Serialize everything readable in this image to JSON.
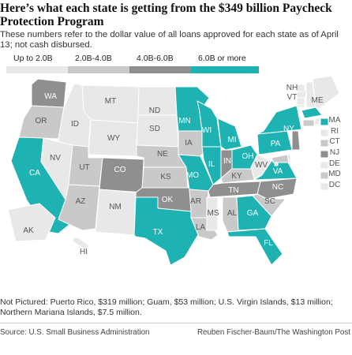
{
  "title": "Here’s what each state is getting from the $349 billion Paycheck Protection Program",
  "subtitle": "These numbers refer to the dollar value of all loans approved for each state as of April 13; not cash disbursed.",
  "legend": [
    {
      "label": "Up to 2.0B",
      "color": "#e8e8e8"
    },
    {
      "label": "2.0B-4.0B",
      "color": "#c9c9c9"
    },
    {
      "label": "4.0B-6.0B",
      "color": "#8f8f8f"
    },
    {
      "label": "6.0B or more",
      "color": "#1fb2b2"
    }
  ],
  "states": [
    {
      "abbr": "WA",
      "bin": 2
    },
    {
      "abbr": "OR",
      "bin": 1
    },
    {
      "abbr": "CA",
      "bin": 3
    },
    {
      "abbr": "ID",
      "bin": 0
    },
    {
      "abbr": "NV",
      "bin": 0
    },
    {
      "abbr": "AZ",
      "bin": 1
    },
    {
      "abbr": "UT",
      "bin": 1
    },
    {
      "abbr": "MT",
      "bin": 0
    },
    {
      "abbr": "WY",
      "bin": 0
    },
    {
      "abbr": "CO",
      "bin": 2
    },
    {
      "abbr": "NM",
      "bin": 0
    },
    {
      "abbr": "ND",
      "bin": 0
    },
    {
      "abbr": "SD",
      "bin": 0
    },
    {
      "abbr": "NE",
      "bin": 1
    },
    {
      "abbr": "KS",
      "bin": 1
    },
    {
      "abbr": "OK",
      "bin": 2
    },
    {
      "abbr": "TX",
      "bin": 3
    },
    {
      "abbr": "MN",
      "bin": 3
    },
    {
      "abbr": "IA",
      "bin": 1
    },
    {
      "abbr": "MO",
      "bin": 3
    },
    {
      "abbr": "AR",
      "bin": 1
    },
    {
      "abbr": "LA",
      "bin": 1
    },
    {
      "abbr": "WI",
      "bin": 3
    },
    {
      "abbr": "IL",
      "bin": 3
    },
    {
      "abbr": "MI",
      "bin": 3
    },
    {
      "abbr": "IN",
      "bin": 2
    },
    {
      "abbr": "KY",
      "bin": 1
    },
    {
      "abbr": "TN",
      "bin": 2
    },
    {
      "abbr": "MS",
      "bin": 0
    },
    {
      "abbr": "AL",
      "bin": 1
    },
    {
      "abbr": "GA",
      "bin": 3
    },
    {
      "abbr": "FL",
      "bin": 3
    },
    {
      "abbr": "OH",
      "bin": 3
    },
    {
      "abbr": "WV",
      "bin": 0
    },
    {
      "abbr": "VA",
      "bin": 3
    },
    {
      "abbr": "NC",
      "bin": 2
    },
    {
      "abbr": "SC",
      "bin": 1
    },
    {
      "abbr": "PA",
      "bin": 3
    },
    {
      "abbr": "NY",
      "bin": 3
    },
    {
      "abbr": "VT",
      "bin": 0
    },
    {
      "abbr": "NH",
      "bin": 0
    },
    {
      "abbr": "ME",
      "bin": 0
    },
    {
      "abbr": "MA",
      "bin": 3
    },
    {
      "abbr": "RI",
      "bin": 0
    },
    {
      "abbr": "CT",
      "bin": 1
    },
    {
      "abbr": "NJ",
      "bin": 2
    },
    {
      "abbr": "DE",
      "bin": 0
    },
    {
      "abbr": "MD",
      "bin": 1
    },
    {
      "abbr": "DC",
      "bin": 0
    },
    {
      "abbr": "AK",
      "bin": 0
    },
    {
      "abbr": "HI",
      "bin": 0
    }
  ],
  "note": "Not Pictured: Puerto Rico, $319 million; Guam, $53 million; U.S. Virgin Islands, $13 million; Northern Mariana Islands, $7.5 million.",
  "source": "Source: U.S. Small Business Administration",
  "credit": "Reuben Fischer-Baum/The Washington Post"
}
